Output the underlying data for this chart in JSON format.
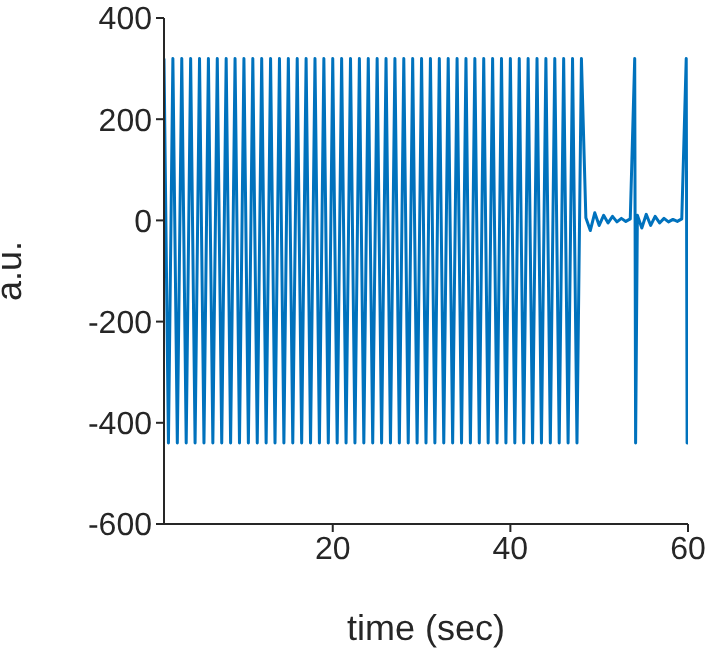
{
  "chart_data": {
    "type": "line",
    "xlabel": "time (sec)",
    "ylabel": "a.u.",
    "xlim": [
      1,
      60
    ],
    "xticks": [
      20,
      40,
      60
    ],
    "ylim": [
      -600,
      400
    ],
    "yticks": [
      -600,
      -400,
      -200,
      0,
      200,
      400
    ],
    "grid": false,
    "legend": false,
    "marker": "none",
    "line_style": "solid",
    "series": [
      {
        "color": "#0072bd",
        "x": [
          1,
          1.5,
          2,
          2.5,
          3,
          3.5,
          4,
          4.5,
          5,
          5.5,
          6,
          6.5,
          7,
          7.5,
          8,
          8.5,
          9,
          9.5,
          10,
          10.5,
          11,
          11.5,
          12,
          12.5,
          13,
          13.5,
          14,
          14.5,
          15,
          15.5,
          16,
          16.5,
          17,
          17.5,
          18,
          18.5,
          19,
          19.5,
          20,
          20.5,
          21,
          21.5,
          22,
          22.5,
          23,
          23.5,
          24,
          24.5,
          25,
          25.5,
          26,
          26.5,
          27,
          27.5,
          28,
          28.5,
          29,
          29.5,
          30,
          30.5,
          31,
          31.5,
          32,
          32.5,
          33,
          33.5,
          34,
          34.5,
          35,
          35.5,
          36,
          36.5,
          37,
          37.5,
          38,
          38.5,
          39,
          39.5,
          40,
          40.5,
          41,
          41.5,
          42,
          42.5,
          43,
          43.5,
          44,
          44.5,
          45,
          45.5,
          46,
          46.5,
          47,
          47.5,
          48,
          48.5,
          49,
          49.5,
          50,
          50.5,
          51,
          51.5,
          52,
          52.5,
          53,
          53.5,
          54,
          54.1,
          54.3,
          54.8,
          55.3,
          55.8,
          56.3,
          56.8,
          57.3,
          57.8,
          58.3,
          58.8,
          59.3,
          59.8,
          59.9,
          60
        ],
        "values": [
          320,
          -440,
          320,
          -440,
          320,
          -440,
          320,
          -440,
          320,
          -440,
          320,
          -440,
          320,
          -440,
          320,
          -440,
          320,
          -440,
          320,
          -440,
          320,
          -440,
          320,
          -440,
          320,
          -440,
          320,
          -440,
          320,
          -440,
          320,
          -440,
          320,
          -440,
          320,
          -440,
          320,
          -440,
          320,
          -440,
          320,
          -440,
          320,
          -440,
          320,
          -440,
          320,
          -440,
          320,
          -440,
          320,
          -440,
          320,
          -440,
          320,
          -440,
          320,
          -440,
          320,
          -440,
          320,
          -440,
          320,
          -440,
          320,
          -440,
          320,
          -440,
          320,
          -440,
          320,
          -440,
          320,
          -440,
          320,
          -440,
          320,
          -440,
          320,
          -440,
          320,
          -440,
          320,
          -440,
          320,
          -440,
          320,
          -440,
          320,
          -440,
          320,
          -440,
          320,
          -440,
          320,
          5,
          -20,
          15,
          -10,
          10,
          -5,
          8,
          -3,
          4,
          -2,
          3,
          320,
          -440,
          10,
          -15,
          12,
          -10,
          8,
          -5,
          4,
          -3,
          2,
          -2,
          3,
          320,
          -440,
          0
        ]
      }
    ]
  }
}
